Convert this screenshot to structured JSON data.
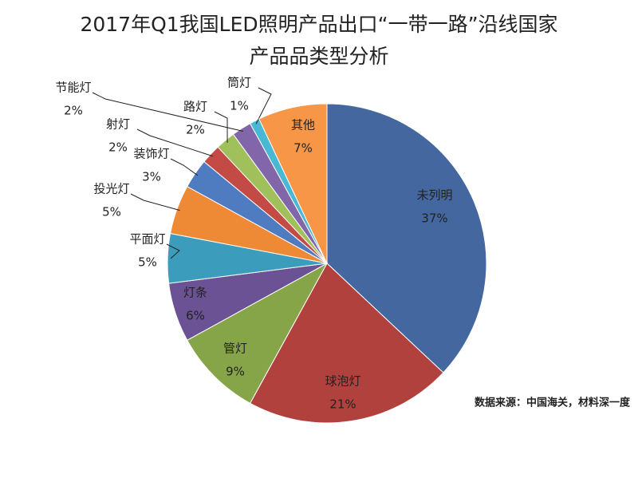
{
  "chart_data": {
    "type": "pie",
    "title": "2017年Q1我国LED照明产品出口“一带一路”沿线国家",
    "subtitle": "产品品类型分析",
    "categories": [
      "未列明",
      "球泡灯",
      "管灯",
      "灯条",
      "平面灯",
      "投光灯",
      "装饰灯",
      "射灯",
      "路灯",
      "节能灯",
      "筒灯",
      "其他"
    ],
    "values": [
      37,
      21,
      9,
      6,
      5,
      5,
      3,
      2,
      2,
      2,
      1,
      7
    ],
    "value_labels": [
      "37%",
      "21%",
      "9%",
      "6%",
      "5%",
      "5%",
      "3%",
      "2%",
      "2%",
      "2%",
      "1%",
      "7%"
    ],
    "colors": [
      "#44679f",
      "#b0413d",
      "#86a548",
      "#6a5294",
      "#3b9dbb",
      "#ee8a35",
      "#4f7cc0",
      "#c44a45",
      "#9fc05a",
      "#8167aa",
      "#49b8d4",
      "#f79646"
    ],
    "source": "数据来源：中国海关，材料深一度"
  }
}
